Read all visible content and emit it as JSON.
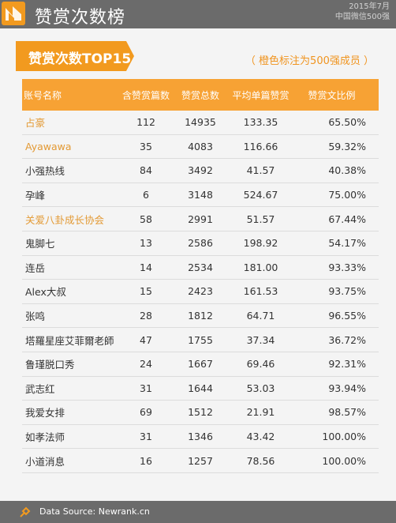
{
  "header": {
    "title": "赞赏次数榜",
    "date": "2015年7月",
    "subtitle": "中国微信500强",
    "accent_color": "#f29a1f"
  },
  "section": {
    "tag": "赞赏次数TOP15",
    "note": "（ 橙色标注为500强成员 ）"
  },
  "chart_data": {
    "type": "table",
    "columns": [
      "账号名称",
      "含赞赏篇数",
      "赞赏总数",
      "平均单篇赞赏",
      "赞赏文比例"
    ],
    "rows": [
      {
        "name": "占豪",
        "articles": "112",
        "total": "14935",
        "avg": "133.35",
        "ratio": "65.50%",
        "highlight": true
      },
      {
        "name": "Ayawawa",
        "articles": "35",
        "total": "4083",
        "avg": "116.66",
        "ratio": "59.32%",
        "highlight": true
      },
      {
        "name": "小强热线",
        "articles": "84",
        "total": "3492",
        "avg": "41.57",
        "ratio": "40.38%",
        "highlight": false
      },
      {
        "name": "孕峰",
        "articles": "6",
        "total": "3148",
        "avg": "524.67",
        "ratio": "75.00%",
        "highlight": false
      },
      {
        "name": "关爱八卦成长协会",
        "articles": "58",
        "total": "2991",
        "avg": "51.57",
        "ratio": "67.44%",
        "highlight": true
      },
      {
        "name": "鬼脚七",
        "articles": "13",
        "total": "2586",
        "avg": "198.92",
        "ratio": "54.17%",
        "highlight": false
      },
      {
        "name": "连岳",
        "articles": "14",
        "total": "2534",
        "avg": "181.00",
        "ratio": "93.33%",
        "highlight": false
      },
      {
        "name": "Alex大叔",
        "articles": "15",
        "total": "2423",
        "avg": "161.53",
        "ratio": "93.75%",
        "highlight": false
      },
      {
        "name": "张鸣",
        "articles": "28",
        "total": "1812",
        "avg": "64.71",
        "ratio": "96.55%",
        "highlight": false
      },
      {
        "name": "塔羅星座艾菲爾老師",
        "articles": "47",
        "total": "1755",
        "avg": "37.34",
        "ratio": "36.72%",
        "highlight": false
      },
      {
        "name": "鲁瑾脱口秀",
        "articles": "24",
        "total": "1667",
        "avg": "69.46",
        "ratio": "92.31%",
        "highlight": false
      },
      {
        "name": "武志红",
        "articles": "31",
        "total": "1644",
        "avg": "53.03",
        "ratio": "93.94%",
        "highlight": false
      },
      {
        "name": "我爱女排",
        "articles": "69",
        "total": "1512",
        "avg": "21.91",
        "ratio": "98.57%",
        "highlight": false
      },
      {
        "name": "如孝法师",
        "articles": "31",
        "total": "1346",
        "avg": "43.42",
        "ratio": "100.00%",
        "highlight": false
      },
      {
        "name": "小道消息",
        "articles": "16",
        "total": "1257",
        "avg": "78.56",
        "ratio": "100.00%",
        "highlight": false
      }
    ]
  },
  "footer": {
    "icon": "pin-icon",
    "text": "Data Source: Newrank.cn"
  }
}
